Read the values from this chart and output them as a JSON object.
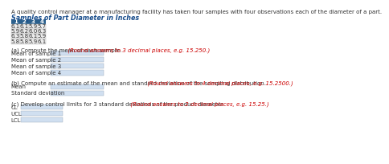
{
  "title_line1": "A quality control manager at a manufacturing facility has taken four samples with four observations each of the diameter of a part.",
  "title_line2": "Samples of Part Diameter in Inches",
  "table_headers": [
    "1",
    "2",
    "3",
    "4"
  ],
  "table_data": [
    [
      "6.1",
      "6.1",
      "5.9",
      "5.7"
    ],
    [
      "5.9",
      "6.2",
      "6.0",
      "6.3"
    ],
    [
      "6.3",
      "5.8",
      "6.1",
      "5.9"
    ],
    [
      "5.8",
      "5.8",
      "5.9",
      "6.1"
    ]
  ],
  "part_a_label": "(a) Compute the mean of each sample.",
  "part_a_red": " (Round answers to 3 decimal places, e.g. 15.250.)",
  "part_a_fields": [
    "Mean of sample 1",
    "Mean of sample 2",
    "Mean of sample 3",
    "Mean of sample 4"
  ],
  "part_b_label": "(b) Compute an estimate of the mean and standard deviation of the sampling distribution.",
  "part_b_red": " (Round answers to 4 decimal places, e.g. 15.2500.)",
  "part_b_fields": [
    "Mean",
    "Standard deviation"
  ],
  "part_c_label": "(c) Develop control limits for 3 standard deviations of the product diameter.",
  "part_c_red": " (Round answers to 2 decimal places, e.g. 15.25.)",
  "part_c_fields": [
    "CL",
    "UCL",
    "LCL"
  ],
  "header_bg": "#2A5F8C",
  "header_text": "#FFFFFF",
  "table_bg": "#ECECEC",
  "input_bg": "#D0DFF0",
  "title2_color": "#1A4E8C",
  "text_color": "#333333",
  "red_color": "#CC0000",
  "bg_color": "#FFFFFF",
  "font_size_body": 5.0,
  "font_size_title2": 5.8,
  "font_size_table": 5.0
}
